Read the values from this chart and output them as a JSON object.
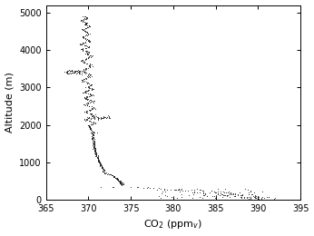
{
  "title": "",
  "xlabel": "CO$_2$ (ppm$_v$)",
  "ylabel": "Altitude (m)",
  "xlim": [
    365,
    395
  ],
  "ylim": [
    0,
    5200
  ],
  "xticks": [
    365,
    370,
    375,
    380,
    385,
    390,
    395
  ],
  "yticks": [
    0,
    1000,
    2000,
    3000,
    4000,
    5000
  ],
  "marker_color": "#111111",
  "marker_size": 1.2,
  "background_color": "#ffffff"
}
